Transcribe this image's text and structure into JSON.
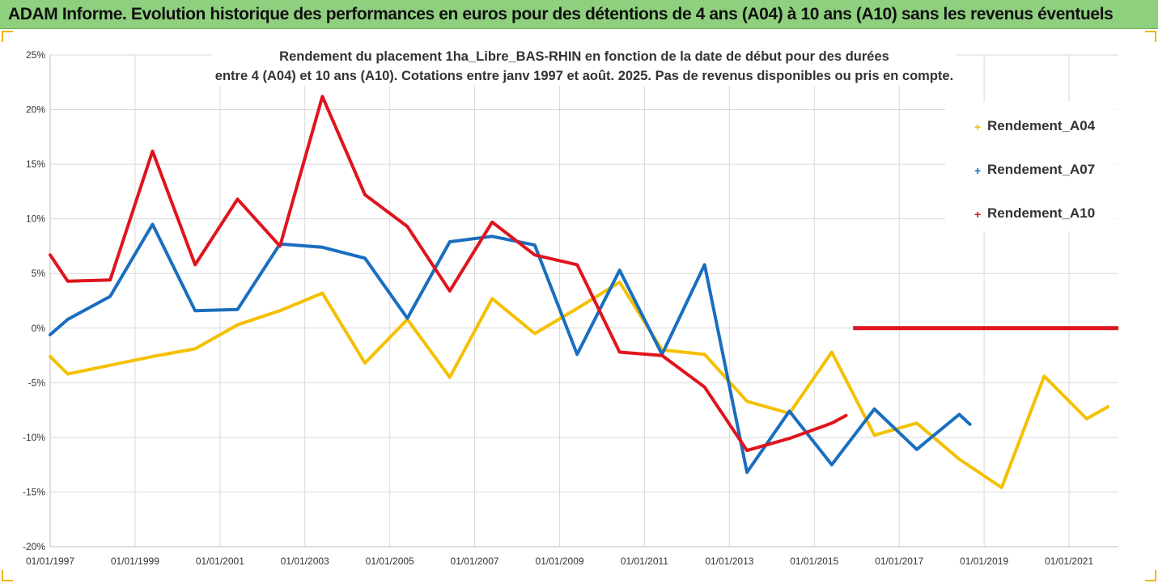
{
  "banner": {
    "title": "ADAM Informe. Evolution historique des performances en euros pour des détentions de 4 ans (A04) à 10 ans (A10) sans les revenus éventuels"
  },
  "chart_data": {
    "type": "line",
    "title_line1": "Rendement du placement 1ha_Libre_BAS-RHIN en fonction de la date de début pour des durées",
    "title_line2": "entre 4 (A04) et 10 ans (A10). Cotations entre janv 1997 et août. 2025. Pas de revenus disponibles ou pris en compte.",
    "xlabel": "",
    "ylabel": "",
    "x_type": "date",
    "xlim": [
      "1997-01-01",
      "2022-03-01"
    ],
    "ylim": [
      -0.2,
      0.25
    ],
    "y_ticks": [
      0.25,
      0.2,
      0.15,
      0.1,
      0.05,
      0.0,
      -0.05,
      -0.1,
      -0.15,
      -0.2
    ],
    "y_tick_labels": [
      "25%",
      "20%",
      "15%",
      "10%",
      "5%",
      "0%",
      "-5%",
      "-10%",
      "-15%",
      "-20%"
    ],
    "x_ticks": [
      "1997-01-01",
      "1999-01-01",
      "2001-01-01",
      "2003-01-01",
      "2005-01-01",
      "2007-01-01",
      "2009-01-01",
      "2011-01-01",
      "2013-01-01",
      "2015-01-01",
      "2017-01-01",
      "2019-01-01",
      "2021-01-01"
    ],
    "x_tick_labels": [
      "01/01/1997",
      "01/01/1999",
      "01/01/2001",
      "01/01/2003",
      "01/01/2005",
      "01/01/2007",
      "01/01/2009",
      "01/01/2011",
      "01/01/2013",
      "01/01/2015",
      "01/01/2017",
      "01/01/2019",
      "01/01/2021"
    ],
    "grid": true,
    "legend_position": "right",
    "series": [
      {
        "name": "Rendement_A04",
        "color": "#f5c000",
        "points": [
          [
            "1997-01-01",
            -0.026
          ],
          [
            "1997-06-01",
            -0.042
          ],
          [
            "1998-06-01",
            -0.034
          ],
          [
            "1999-06-01",
            -0.026
          ],
          [
            "2000-06-01",
            -0.019
          ],
          [
            "2001-06-01",
            0.003
          ],
          [
            "2002-06-01",
            0.016
          ],
          [
            "2003-06-01",
            0.032
          ],
          [
            "2004-06-01",
            -0.032
          ],
          [
            "2005-06-01",
            0.008
          ],
          [
            "2006-06-01",
            -0.045
          ],
          [
            "2007-06-01",
            0.027
          ],
          [
            "2008-06-01",
            -0.005
          ],
          [
            "2009-06-01",
            0.018
          ],
          [
            "2010-06-01",
            0.042
          ],
          [
            "2011-06-01",
            -0.02
          ],
          [
            "2012-06-01",
            -0.024
          ],
          [
            "2013-06-01",
            -0.067
          ],
          [
            "2014-06-01",
            -0.078
          ],
          [
            "2015-06-01",
            -0.022
          ],
          [
            "2016-06-01",
            -0.098
          ],
          [
            "2017-06-01",
            -0.087
          ],
          [
            "2018-06-01",
            -0.12
          ],
          [
            "2019-06-01",
            -0.146
          ],
          [
            "2020-06-01",
            -0.044
          ],
          [
            "2021-06-01",
            -0.083
          ],
          [
            "2021-12-01",
            -0.072
          ]
        ]
      },
      {
        "name": "Rendement_A07",
        "color": "#1a6ebf",
        "points": [
          [
            "1997-01-01",
            -0.006
          ],
          [
            "1997-06-01",
            0.008
          ],
          [
            "1998-06-01",
            0.029
          ],
          [
            "1999-06-01",
            0.095
          ],
          [
            "2000-06-01",
            0.016
          ],
          [
            "2001-06-01",
            0.017
          ],
          [
            "2002-06-01",
            0.077
          ],
          [
            "2003-06-01",
            0.074
          ],
          [
            "2004-06-01",
            0.064
          ],
          [
            "2005-06-01",
            0.009
          ],
          [
            "2006-06-01",
            0.079
          ],
          [
            "2007-06-01",
            0.084
          ],
          [
            "2008-06-01",
            0.076
          ],
          [
            "2009-06-01",
            -0.024
          ],
          [
            "2010-06-01",
            0.053
          ],
          [
            "2011-06-01",
            -0.024
          ],
          [
            "2012-06-01",
            0.058
          ],
          [
            "2013-06-01",
            -0.132
          ],
          [
            "2014-06-01",
            -0.076
          ],
          [
            "2015-06-01",
            -0.125
          ],
          [
            "2016-06-01",
            -0.074
          ],
          [
            "2017-06-01",
            -0.111
          ],
          [
            "2018-06-01",
            -0.079
          ],
          [
            "2018-09-01",
            -0.088
          ]
        ]
      },
      {
        "name": "Rendement_A10",
        "color": "#e0141e",
        "points": [
          [
            "1997-01-01",
            0.067
          ],
          [
            "1997-06-01",
            0.043
          ],
          [
            "1998-06-01",
            0.044
          ],
          [
            "1999-06-01",
            0.162
          ],
          [
            "2000-06-01",
            0.058
          ],
          [
            "2001-06-01",
            0.118
          ],
          [
            "2002-06-01",
            0.075
          ],
          [
            "2003-06-01",
            0.212
          ],
          [
            "2004-06-01",
            0.122
          ],
          [
            "2005-06-01",
            0.093
          ],
          [
            "2006-06-01",
            0.034
          ],
          [
            "2007-06-01",
            0.097
          ],
          [
            "2008-06-01",
            0.067
          ],
          [
            "2009-06-01",
            0.058
          ],
          [
            "2010-06-01",
            -0.022
          ],
          [
            "2011-06-01",
            -0.025
          ],
          [
            "2012-06-01",
            -0.054
          ],
          [
            "2013-06-01",
            -0.112
          ],
          [
            "2014-06-01",
            -0.101
          ],
          [
            "2015-06-01",
            -0.087
          ],
          [
            "2015-10-01",
            -0.08
          ]
        ],
        "flat_segment": [
          [
            "2015-12-01",
            0.0
          ],
          [
            "2022-03-01",
            0.0
          ]
        ]
      }
    ]
  }
}
